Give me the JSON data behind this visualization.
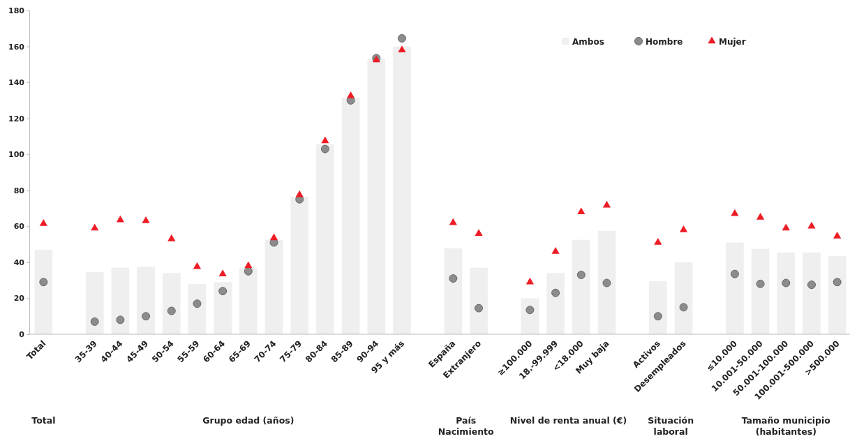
{
  "chart_data": {
    "type": "bar",
    "categories": [
      "Total",
      null,
      "35-39",
      "40-44",
      "45-49",
      "50-54",
      "55-59",
      "60-64",
      "65-69",
      "70-74",
      "75-79",
      "80-84",
      "85-89",
      "90-94",
      "95 y más",
      null,
      "España",
      "Extranjero",
      null,
      "≥100.000",
      "18.-99.999",
      "<18.000",
      "Muy baja",
      null,
      "Activos",
      "Desempleados",
      null,
      "≤10.000",
      "10.001-50.000",
      "50.001-100.000",
      "100.001-500.000",
      ">500.000"
    ],
    "series": [
      {
        "name": "Ambos",
        "color": "#efefef",
        "values": [
          47,
          null,
          34.5,
          37,
          37.5,
          34,
          28,
          29,
          37,
          52.5,
          76.5,
          105.5,
          131.5,
          153,
          160,
          null,
          47.7,
          37,
          null,
          20,
          34,
          52.5,
          57.5,
          null,
          29.5,
          40,
          null,
          51,
          47.5,
          45.5,
          45.5,
          43.5
        ]
      },
      {
        "name": "Hombre",
        "type": "scatter",
        "marker": "circle",
        "color": "#8c8c8c",
        "values": [
          29,
          null,
          7,
          8,
          10,
          13,
          17,
          24,
          35,
          51,
          75,
          103,
          130,
          153.5,
          164.5,
          null,
          31,
          14.5,
          null,
          13.5,
          23,
          33,
          28.5,
          null,
          10,
          15,
          null,
          33.5,
          28,
          28.5,
          27.5,
          29
        ]
      },
      {
        "name": "Mujer",
        "type": "scatter",
        "marker": "triangle",
        "color": "#ee1c25",
        "values": [
          61.5,
          null,
          59,
          63.5,
          63,
          53,
          37.5,
          33.5,
          38,
          53.5,
          77.5,
          107.5,
          132.5,
          152.5,
          158,
          null,
          62,
          56,
          null,
          29,
          46,
          68,
          71.7,
          null,
          51,
          58,
          null,
          67,
          65,
          59,
          60,
          54.5
        ]
      }
    ],
    "ylim": [
      0,
      180
    ],
    "yticks": [
      0,
      20,
      40,
      60,
      80,
      100,
      120,
      140,
      160,
      180
    ],
    "grid": false,
    "legend": "top right",
    "annotations": [
      "Total",
      "Grupo edad (años)",
      "País\nNacimiento",
      "Nivel de renta anual (€)",
      "Situación\nlaboral",
      "Tamaño municipio\n(habitantes)"
    ]
  }
}
